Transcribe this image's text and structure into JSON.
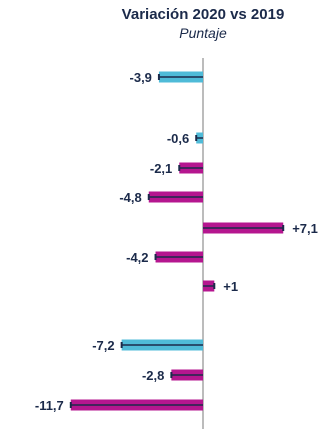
{
  "chart_data": {
    "type": "bar",
    "orientation": "horizontal",
    "title": "Variación 2020 vs 2019",
    "subtitle": "Puntaje",
    "values": [
      -3.9,
      -0.6,
      -2.1,
      -4.8,
      7.1,
      -4.2,
      1,
      -7.2,
      -2.8,
      -11.7
    ],
    "labels": [
      "-3,9",
      "-0,6",
      "-2,1",
      "-4,8",
      "+7,1",
      "-4,2",
      "+1",
      "-7,2",
      "-2,8",
      "-11,7"
    ],
    "colors": [
      "#4fbbd8",
      "#4fbbd8",
      "#b5168f",
      "#b5168f",
      "#b5168f",
      "#b5168f",
      "#b5168f",
      "#4fbbd8",
      "#b5168f",
      "#b5168f"
    ],
    "axis_color": "#a6a6a6",
    "line_color": "#1b2a4a"
  }
}
